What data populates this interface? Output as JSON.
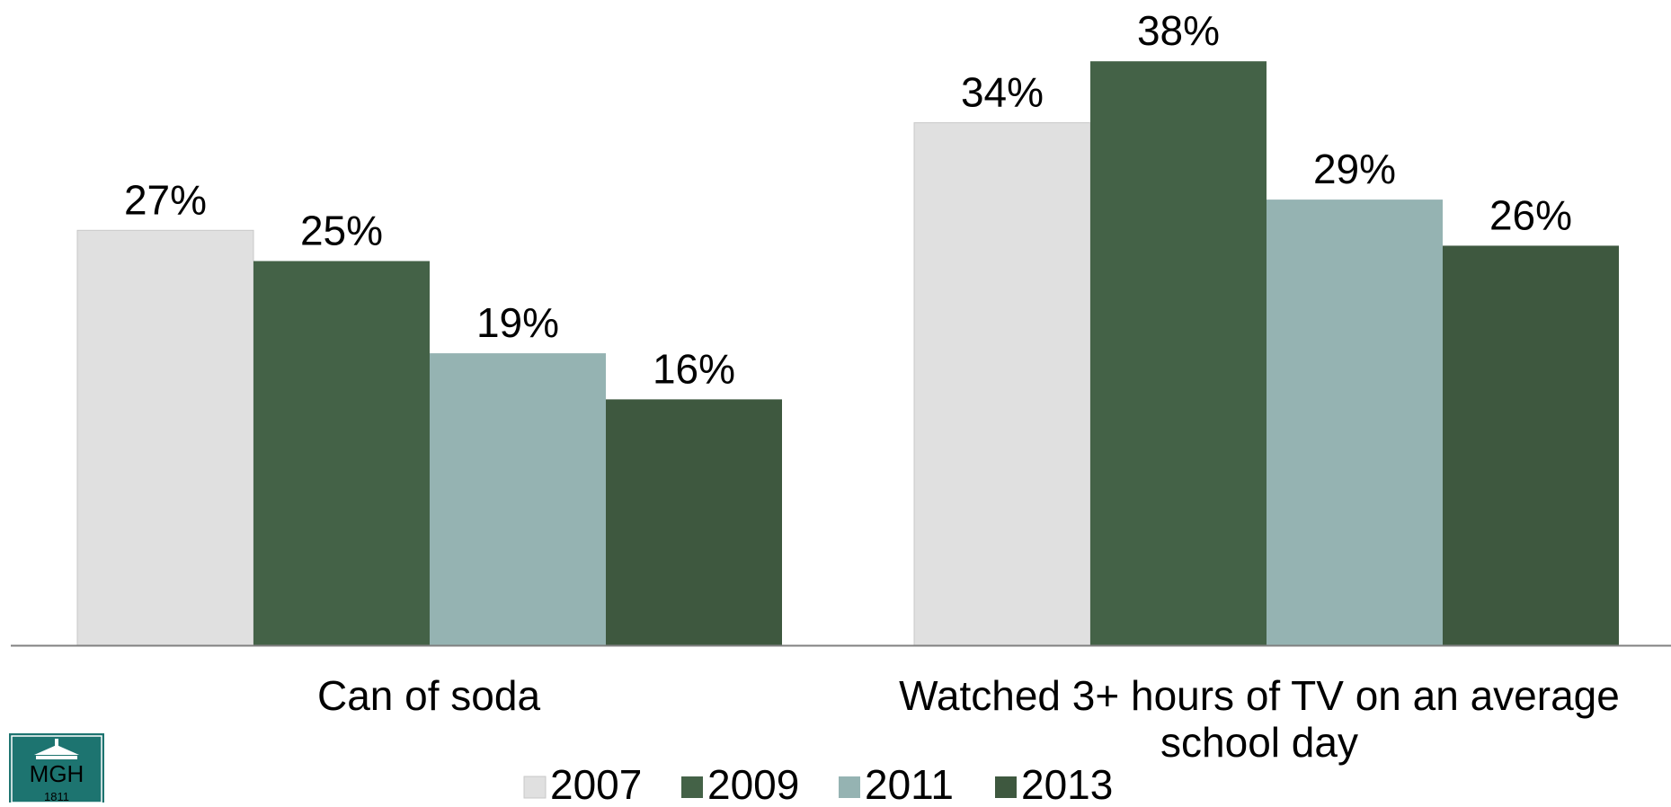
{
  "chart_data": {
    "type": "bar",
    "categories": [
      [
        "Can of soda"
      ],
      [
        "Watched 3+ hours of TV on an average",
        "school day"
      ]
    ],
    "series": [
      {
        "name": "2007",
        "values": [
          27,
          34
        ],
        "color": "#E0E0E0"
      },
      {
        "name": "2009",
        "values": [
          25,
          38
        ],
        "color": "#446247"
      },
      {
        "name": "2011",
        "values": [
          19,
          29
        ],
        "color": "#95B3B2"
      },
      {
        "name": "2013",
        "values": [
          16,
          26
        ],
        "color": "#3E583F"
      }
    ],
    "value_suffix": "%",
    "ylim": [
      0,
      40
    ],
    "grid": false,
    "legend_position": "bottom"
  },
  "logo": {
    "text": "MGH",
    "year": "1811",
    "color": "#1D7470"
  }
}
